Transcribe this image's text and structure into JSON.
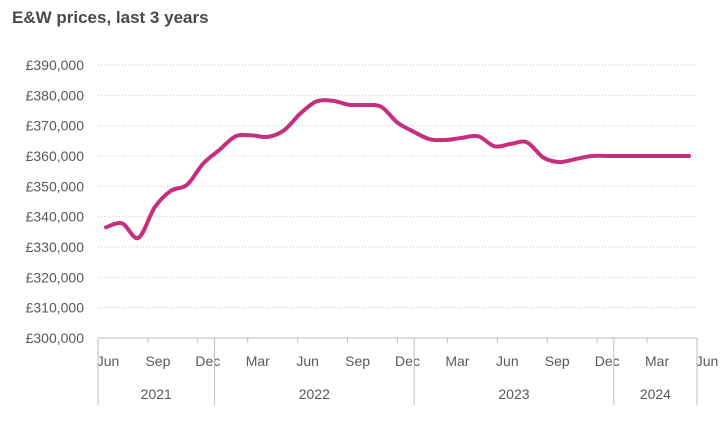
{
  "chart_data": {
    "type": "line",
    "title": "E&W prices, last 3 years",
    "xlabel": "",
    "ylabel": "",
    "ylim": [
      300000,
      390000
    ],
    "yticks": [
      "£300,000",
      "£310,000",
      "£320,000",
      "£330,000",
      "£340,000",
      "£350,000",
      "£360,000",
      "£370,000",
      "£380,000",
      "£390,000"
    ],
    "ytick_values": [
      300000,
      310000,
      320000,
      330000,
      340000,
      350000,
      360000,
      370000,
      380000,
      390000
    ],
    "xticks": [
      "Jun",
      "Sep",
      "Dec",
      "Mar",
      "Jun",
      "Sep",
      "Dec",
      "Mar",
      "Jun",
      "Sep",
      "Dec",
      "Mar",
      "Jun"
    ],
    "years": [
      "2021",
      "2022",
      "2023",
      "2024"
    ],
    "grid": true,
    "color": "#C4307E",
    "x": [
      "2021-06",
      "2021-07",
      "2021-08",
      "2021-09",
      "2021-10",
      "2021-11",
      "2021-12",
      "2022-01",
      "2022-02",
      "2022-03",
      "2022-04",
      "2022-05",
      "2022-06",
      "2022-07",
      "2022-08",
      "2022-09",
      "2022-10",
      "2022-11",
      "2022-12",
      "2023-01",
      "2023-02",
      "2023-03",
      "2023-04",
      "2023-05",
      "2023-06",
      "2023-07",
      "2023-08",
      "2023-09",
      "2023-10",
      "2023-11",
      "2023-12",
      "2024-01",
      "2024-02",
      "2024-03",
      "2024-04",
      "2024-05",
      "2024-06"
    ],
    "values": [
      336500,
      337800,
      333000,
      343000,
      348500,
      350500,
      357500,
      362000,
      366500,
      366800,
      366300,
      368500,
      374000,
      378000,
      378200,
      376900,
      376800,
      376200,
      371000,
      368000,
      365500,
      365300,
      366000,
      366500,
      363200,
      364000,
      364500,
      359500,
      358000,
      359000,
      360000,
      360000,
      360000,
      360000,
      360000,
      360000,
      360000
    ]
  }
}
